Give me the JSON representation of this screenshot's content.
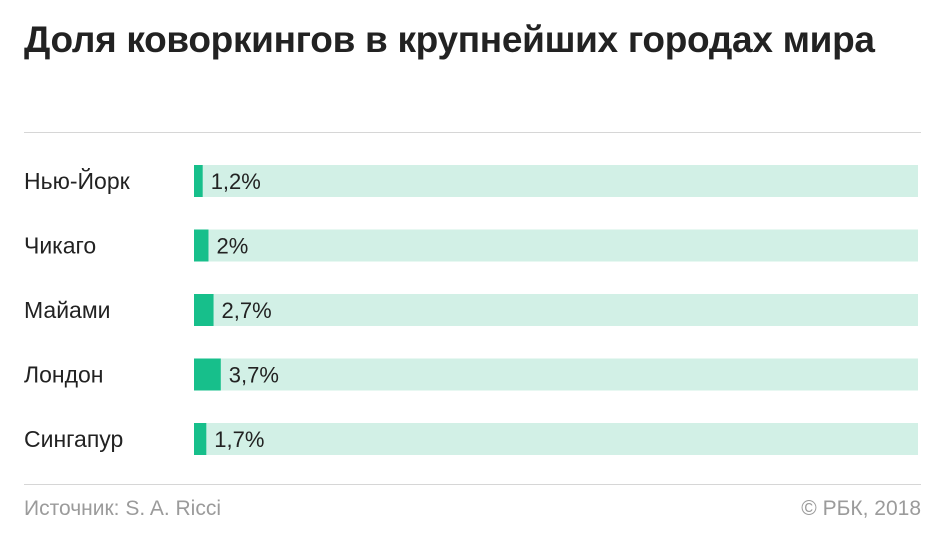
{
  "header": {
    "title": "Доля коворкингов в крупнейших городах мира"
  },
  "footer": {
    "source": "Источник: S. A. Ricci",
    "copyright": "© РБК, 2018"
  },
  "colors": {
    "bar": "#17bf8b",
    "track": "#d2f0e6",
    "text": "#222222",
    "muted": "#9b9b9b",
    "rule": "#d6d6d6"
  },
  "chart_data": {
    "type": "bar",
    "orientation": "horizontal",
    "title": "Доля коворкингов в крупнейших городах мира",
    "categories": [
      "Нью-Йорк",
      "Чикаго",
      "Майами",
      "Лондон",
      "Сингапур"
    ],
    "values": [
      1.2,
      2,
      2.7,
      3.7,
      1.7
    ],
    "value_labels": [
      "1,2%",
      "2%",
      "2,7%",
      "3,7%",
      "1,7%"
    ],
    "unit": "%",
    "xlim": [
      0,
      100
    ],
    "grid": false,
    "legend": "none"
  }
}
